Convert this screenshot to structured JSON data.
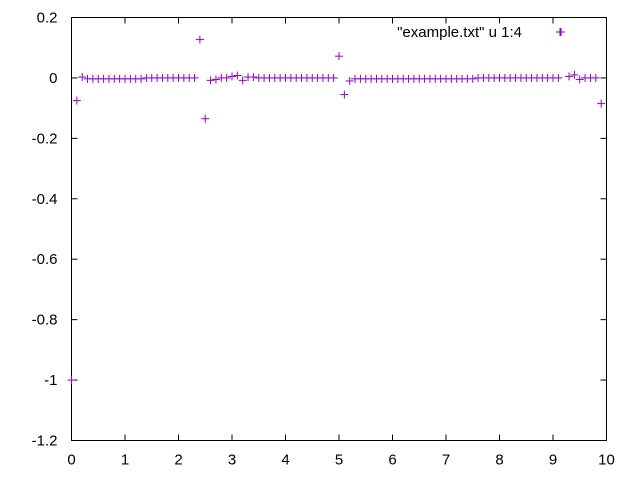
{
  "chart_data": {
    "type": "scatter",
    "xlim": [
      0,
      10
    ],
    "ylim": [
      -1.2,
      0.2
    ],
    "xticks": [
      0,
      1,
      2,
      3,
      4,
      5,
      6,
      7,
      8,
      9,
      10
    ],
    "yticks": [
      0.2,
      0,
      -0.2,
      -0.4,
      -0.6,
      -0.8,
      -1,
      -1.2
    ],
    "xtick_labels": [
      "0",
      "1",
      "2",
      "3",
      "4",
      "5",
      "6",
      "7",
      "8",
      "9",
      "10"
    ],
    "ytick_labels": [
      "0.2",
      "0",
      "-0.2",
      "-0.4",
      "-0.6",
      "-0.8",
      "-1",
      "-1.2"
    ],
    "grid": false,
    "legend_position": "top-right",
    "series": [
      {
        "name": "\"example.txt\" u 1:4",
        "color": "#9400d3",
        "marker": "plus",
        "x": [
          0,
          0.1,
          0.2,
          0.3,
          0.4,
          0.5,
          0.6,
          0.7,
          0.8,
          0.9,
          1.0,
          1.1,
          1.2,
          1.3,
          1.4,
          1.5,
          1.6,
          1.7,
          1.8,
          1.9,
          2.0,
          2.1,
          2.2,
          2.3,
          2.4,
          2.5,
          2.6,
          2.7,
          2.8,
          2.9,
          3.0,
          3.1,
          3.2,
          3.3,
          3.4,
          3.5,
          3.6,
          3.7,
          3.8,
          3.9,
          4.0,
          4.1,
          4.2,
          4.3,
          4.4,
          4.5,
          4.6,
          4.7,
          4.8,
          4.9,
          5.0,
          5.1,
          5.2,
          5.3,
          5.4,
          5.5,
          5.6,
          5.7,
          5.8,
          5.9,
          6.0,
          6.1,
          6.2,
          6.3,
          6.4,
          6.5,
          6.6,
          6.7,
          6.8,
          6.9,
          7.0,
          7.1,
          7.2,
          7.3,
          7.4,
          7.5,
          7.6,
          7.7,
          7.8,
          7.9,
          8.0,
          8.1,
          8.2,
          8.3,
          8.4,
          8.5,
          8.6,
          8.7,
          8.8,
          8.9,
          9.0,
          9.1,
          9.15,
          9.3,
          9.4,
          9.5,
          9.6,
          9.7,
          9.8,
          9.9
        ],
        "y": [
          -1.0,
          -0.075,
          0.003,
          -0.003,
          -0.003,
          -0.003,
          -0.003,
          -0.003,
          -0.003,
          -0.003,
          -0.003,
          -0.003,
          -0.003,
          -0.003,
          0.0,
          0.0,
          0.0,
          0.0,
          0.0,
          0.0,
          0.0,
          0.0,
          0.0,
          0.0,
          0.127,
          -0.135,
          -0.008,
          -0.005,
          0.0,
          0.0,
          0.005,
          0.008,
          -0.008,
          0.003,
          0.003,
          0.0,
          0.0,
          0.0,
          0.0,
          0.0,
          0.0,
          0.0,
          0.0,
          0.0,
          0.0,
          0.0,
          0.0,
          0.0,
          0.0,
          0.0,
          0.072,
          -0.055,
          -0.01,
          -0.003,
          -0.003,
          -0.003,
          -0.003,
          -0.003,
          -0.003,
          -0.003,
          -0.003,
          -0.003,
          -0.003,
          -0.003,
          -0.003,
          -0.003,
          -0.003,
          -0.003,
          -0.003,
          -0.003,
          -0.003,
          -0.003,
          -0.003,
          -0.003,
          -0.003,
          -0.003,
          0.0,
          0.0,
          0.0,
          0.0,
          0.0,
          0.0,
          0.0,
          0.0,
          0.0,
          0.0,
          0.0,
          0.0,
          0.0,
          0.0,
          0.0,
          0.0,
          0.152,
          0.005,
          0.01,
          -0.005,
          0.0,
          0.0,
          0.0,
          -0.085
        ]
      }
    ]
  }
}
